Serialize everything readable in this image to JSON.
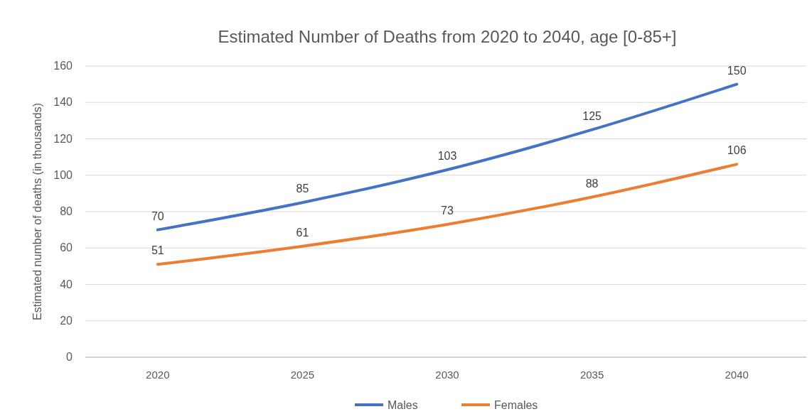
{
  "chart_data": {
    "type": "line",
    "title": "Estimated Number of Deaths from 2020 to 2040, age [0-85+]",
    "ylabel": "Estimated number of deaths (in thousands)",
    "categories": [
      "2020",
      "2025",
      "2030",
      "2035",
      "2040"
    ],
    "series": [
      {
        "name": "Males",
        "color": "#4472c4",
        "values": [
          70,
          85,
          103,
          125,
          150
        ]
      },
      {
        "name": "Females",
        "color": "#ed7d31",
        "values": [
          51,
          61,
          73,
          88,
          106
        ]
      }
    ],
    "ylim": [
      0,
      160
    ],
    "yticks": [
      0,
      20,
      40,
      60,
      80,
      100,
      120,
      140,
      160
    ],
    "grid": "y",
    "legend": "bottom",
    "data_labels": true,
    "marker": "none",
    "line_style": "solid"
  }
}
